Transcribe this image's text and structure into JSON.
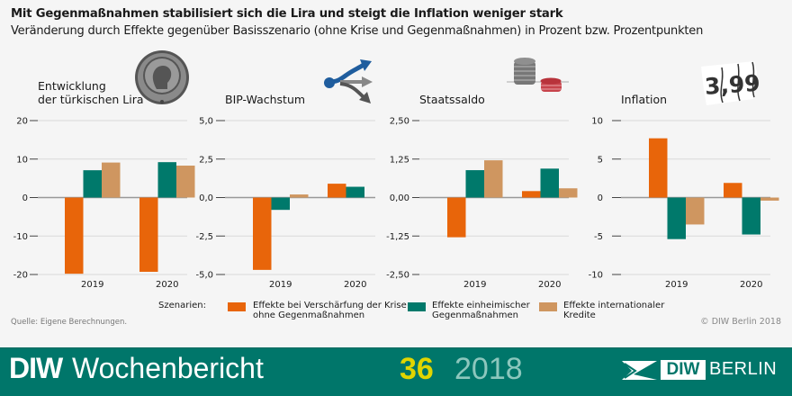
{
  "header": {
    "title": "Mit Gegenmaßnahmen stabilisiert sich die Lira und steigt die Inflation weniger stark",
    "subtitle": "Veränderung durch Effekte gegenüber Basisszenario (ohne Krise und Gegenmaßnahmen) in Prozent bzw. Prozentpunkten"
  },
  "colors": {
    "crisis": "#e8650a",
    "domestic": "#00796b",
    "international": "#cf9660",
    "grid": "#d9d9d9",
    "zero": "#999999"
  },
  "chart_data": [
    {
      "type": "bar",
      "title": "Entwicklung der türkischen Lira",
      "title_lines": [
        "Entwicklung",
        "der türkischen Lira"
      ],
      "icon": "lira-coin-icon",
      "categories": [
        "2019",
        "2020"
      ],
      "ylim": [
        -20,
        20
      ],
      "yticks": [
        20,
        10,
        0,
        -10,
        -20
      ],
      "ytick_labels": [
        "20",
        "10",
        "0",
        "-10",
        "-20"
      ],
      "series": [
        {
          "name": "Effekte bei Verschärfung der Krise ohne Gegenmaßnahmen",
          "values": [
            -19.8,
            -19.3
          ]
        },
        {
          "name": "Effekte einheimischer Gegenmaßnahmen",
          "values": [
            7.1,
            9.2
          ]
        },
        {
          "name": "Effekte internationaler Kredite",
          "values": [
            9.1,
            8.3
          ]
        }
      ]
    },
    {
      "type": "bar",
      "title": "BIP-Wachstum",
      "title_lines": [
        "BIP-Wachstum"
      ],
      "icon": "growth-arrows-icon",
      "categories": [
        "2019",
        "2020"
      ],
      "ylim": [
        -5,
        5
      ],
      "yticks": [
        5,
        2.5,
        0,
        -2.5,
        -5
      ],
      "ytick_labels": [
        "5,0",
        "2,5",
        "0,0",
        "-2,5",
        "-5,0"
      ],
      "series": [
        {
          "name": "Effekte bei Verschärfung der Krise ohne Gegenmaßnahmen",
          "values": [
            -4.7,
            0.9
          ]
        },
        {
          "name": "Effekte einheimischer Gegenmaßnahmen",
          "values": [
            -0.8,
            0.7
          ]
        },
        {
          "name": "Effekte internationaler Kredite",
          "values": [
            0.2,
            0.0
          ]
        }
      ]
    },
    {
      "type": "bar",
      "title": "Staatssaldo",
      "title_lines": [
        "Staatssaldo"
      ],
      "icon": "coin-stacks-icon",
      "categories": [
        "2019",
        "2020"
      ],
      "ylim": [
        -2.5,
        2.5
      ],
      "yticks": [
        2.5,
        1.25,
        0,
        -1.25,
        -2.5
      ],
      "ytick_labels": [
        "2,50",
        "1,25",
        "0,00",
        "-1,25",
        "-2,50"
      ],
      "series": [
        {
          "name": "Effekte bei Verschärfung der Krise ohne Gegenmaßnahmen",
          "values": [
            -1.29,
            0.21
          ]
        },
        {
          "name": "Effekte einheimischer Gegenmaßnahmen",
          "values": [
            0.89,
            0.94
          ]
        },
        {
          "name": "Effekte internationaler Kredite",
          "values": [
            1.21,
            0.3
          ]
        }
      ]
    },
    {
      "type": "bar",
      "title": "Inflation",
      "title_lines": [
        "Inflation"
      ],
      "icon": "price-tag-icon",
      "icon_text": "3,99",
      "categories": [
        "2019",
        "2020"
      ],
      "ylim": [
        -10,
        10
      ],
      "yticks": [
        10,
        5,
        0,
        -5,
        -10
      ],
      "ytick_labels": [
        "10",
        "5",
        "0",
        "-5",
        "-10"
      ],
      "series": [
        {
          "name": "Effekte bei Verschärfung der Krise ohne Gegenmaßnahmen",
          "values": [
            7.7,
            1.9
          ]
        },
        {
          "name": "Effekte einheimischer Gegenmaßnahmen",
          "values": [
            -5.4,
            -4.8
          ]
        },
        {
          "name": "Effekte internationaler Kredite",
          "values": [
            -3.5,
            -0.4
          ]
        }
      ]
    }
  ],
  "legend": {
    "heading": "Szenarien:",
    "items": [
      {
        "label_line1": "Effekte bei Verschärfung der Krise",
        "label_line2": "ohne Gegenmaßnahmen"
      },
      {
        "label_line1": "Effekte einheimischer",
        "label_line2": "Gegenmaßnahmen"
      },
      {
        "label_line1": "Effekte internationaler",
        "label_line2": "Kredite"
      }
    ]
  },
  "source": "Quelle: Eigene Berechnungen.",
  "copyright": "© DIW Berlin 2018",
  "footer": {
    "brand": "DIW",
    "publication": "Wochenbericht",
    "issue": "36",
    "year": "2018",
    "logo_box": "DIW",
    "logo_text": "BERLIN"
  }
}
